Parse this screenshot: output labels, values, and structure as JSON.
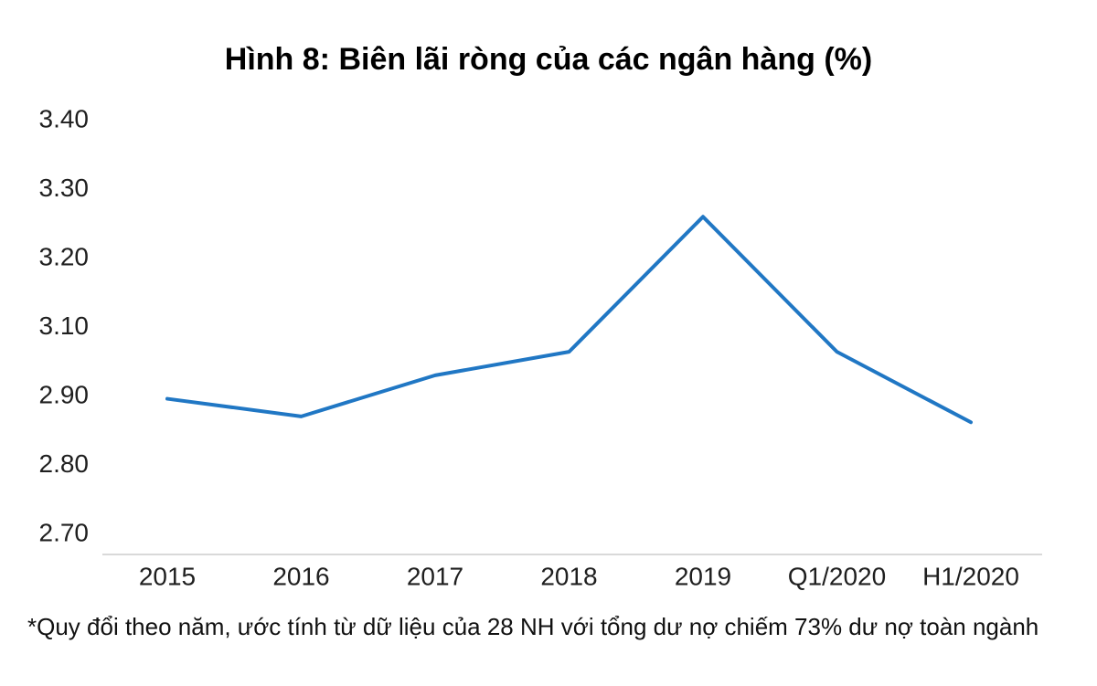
{
  "title": "Hình 8: Biên lãi ròng của các ngân hàng (%)",
  "footnote": "*Quy đổi theo năm, ước tính từ dữ liệu của 28 NH với tổng dư nợ chiếm 73% dư nợ toàn ngành",
  "colors": {
    "line": "#2077C4",
    "axis_line": "#D9D9D9",
    "tick_text": "#1f1f1f",
    "title_text": "#000000"
  },
  "chart_data": {
    "type": "line",
    "title": "Hình 8: Biên lãi ròng của các ngân hàng (%)",
    "categories": [
      "2015",
      "2016",
      "2017",
      "2018",
      "2019",
      "Q1/2020",
      "H1/2020"
    ],
    "series": [
      {
        "name": "Biên lãi ròng (%)",
        "values": [
          2.92,
          2.89,
          2.96,
          3.0,
          3.23,
          3.0,
          2.88
        ]
      }
    ],
    "xlabel": "",
    "ylabel": "",
    "ylim": [
      2.7,
      3.4
    ],
    "y_tick_labels": [
      "3.40",
      "3.30",
      "3.20",
      "3.10",
      "2.90",
      "2.80",
      "2.70"
    ],
    "grid": false,
    "legend_position": "none",
    "annotations": [
      "*Quy đổi theo năm, ước tính từ dữ liệu của 28 NH với tổng dư nợ chiếm 73% dư nợ toàn ngành"
    ]
  }
}
